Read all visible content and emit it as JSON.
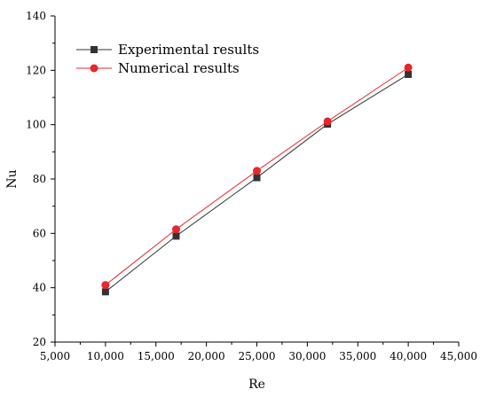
{
  "chart_data": {
    "type": "line",
    "title": "",
    "xlabel": "Re",
    "ylabel": "Nu",
    "xlim": [
      5000,
      45000
    ],
    "ylim": [
      20,
      140
    ],
    "x_ticks": [
      5000,
      10000,
      15000,
      20000,
      25000,
      30000,
      35000,
      40000,
      45000
    ],
    "x_tick_labels": [
      "5,000",
      "10,000",
      "15,000",
      "20,000",
      "25,000",
      "30,000",
      "35,000",
      "40,000",
      "45,000"
    ],
    "y_ticks": [
      20,
      40,
      60,
      80,
      100,
      120,
      140
    ],
    "y_tick_labels": [
      "20",
      "40",
      "60",
      "80",
      "100",
      "120",
      "140"
    ],
    "grid": false,
    "legend_position": "top-left",
    "x": [
      10000,
      17000,
      25000,
      32000,
      40000
    ],
    "series": [
      {
        "name": "Experimental results",
        "marker": "square",
        "color": "#333333",
        "values": [
          38.5,
          59,
          80.5,
          100.2,
          118.5
        ]
      },
      {
        "name": "Numerical results",
        "marker": "circle",
        "color": "#e8262c",
        "values": [
          41,
          61.5,
          83,
          101.2,
          121
        ]
      }
    ]
  }
}
